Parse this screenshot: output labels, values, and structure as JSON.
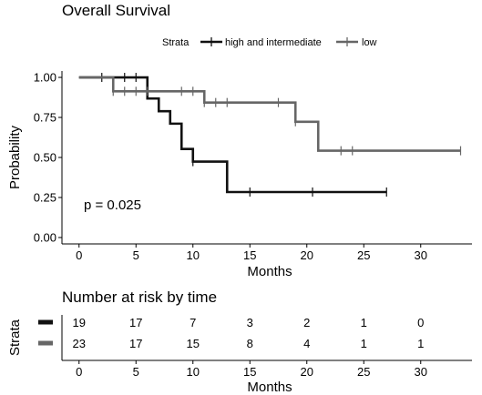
{
  "chart_data": [
    {
      "type": "line",
      "title": "Overall Survival",
      "xlabel": "Months",
      "ylabel": "Probability",
      "xlim": [
        -1.5,
        34.5
      ],
      "ylim": [
        -0.04,
        1.04
      ],
      "x_ticks": [
        "0",
        "5",
        "10",
        "15",
        "20",
        "25",
        "30"
      ],
      "y_ticks": [
        "0.00",
        "0.25",
        "0.50",
        "0.75",
        "1.00"
      ],
      "grid": false,
      "legend_title": "Strata",
      "legend_position": "top",
      "annotation": "p = 0.025",
      "series": [
        {
          "name": "high and intermediate",
          "color": "#111111",
          "steps": [
            [
              0,
              1.0
            ],
            [
              6,
              0.868
            ],
            [
              7,
              0.789
            ],
            [
              8,
              0.711
            ],
            [
              9,
              0.553
            ],
            [
              10,
              0.474
            ],
            [
              13,
              0.284
            ],
            [
              27,
              0.284
            ]
          ],
          "censored": [
            [
              2,
              1.0
            ],
            [
              4,
              1.0
            ],
            [
              5,
              1.0
            ],
            [
              10,
              0.474
            ],
            [
              15,
              0.284
            ],
            [
              20.5,
              0.284
            ],
            [
              27,
              0.284
            ]
          ]
        },
        {
          "name": "low",
          "color": "#666666",
          "steps": [
            [
              0,
              1.0
            ],
            [
              3,
              0.913
            ],
            [
              11,
              0.843
            ],
            [
              19,
              0.723
            ],
            [
              21,
              0.542
            ],
            [
              33.5,
              0.542
            ]
          ],
          "censored": [
            [
              3,
              0.913
            ],
            [
              4,
              0.913
            ],
            [
              5,
              0.913
            ],
            [
              6,
              0.913
            ],
            [
              9,
              0.913
            ],
            [
              10,
              0.913
            ],
            [
              11,
              0.843
            ],
            [
              12,
              0.843
            ],
            [
              13,
              0.843
            ],
            [
              17.5,
              0.843
            ],
            [
              19,
              0.723
            ],
            [
              23,
              0.542
            ],
            [
              24,
              0.542
            ],
            [
              33.5,
              0.542
            ]
          ]
        }
      ]
    },
    {
      "type": "table",
      "title": "Number at risk by time",
      "xlabel": "Months",
      "ylabel": "Strata",
      "x_ticks": [
        "0",
        "5",
        "10",
        "15",
        "20",
        "25",
        "30"
      ],
      "rows": [
        {
          "color": "#111111",
          "values": [
            "19",
            "17",
            "7",
            "3",
            "2",
            "1",
            "0"
          ]
        },
        {
          "color": "#666666",
          "values": [
            "23",
            "17",
            "15",
            "8",
            "4",
            "1",
            "1"
          ]
        }
      ]
    }
  ]
}
